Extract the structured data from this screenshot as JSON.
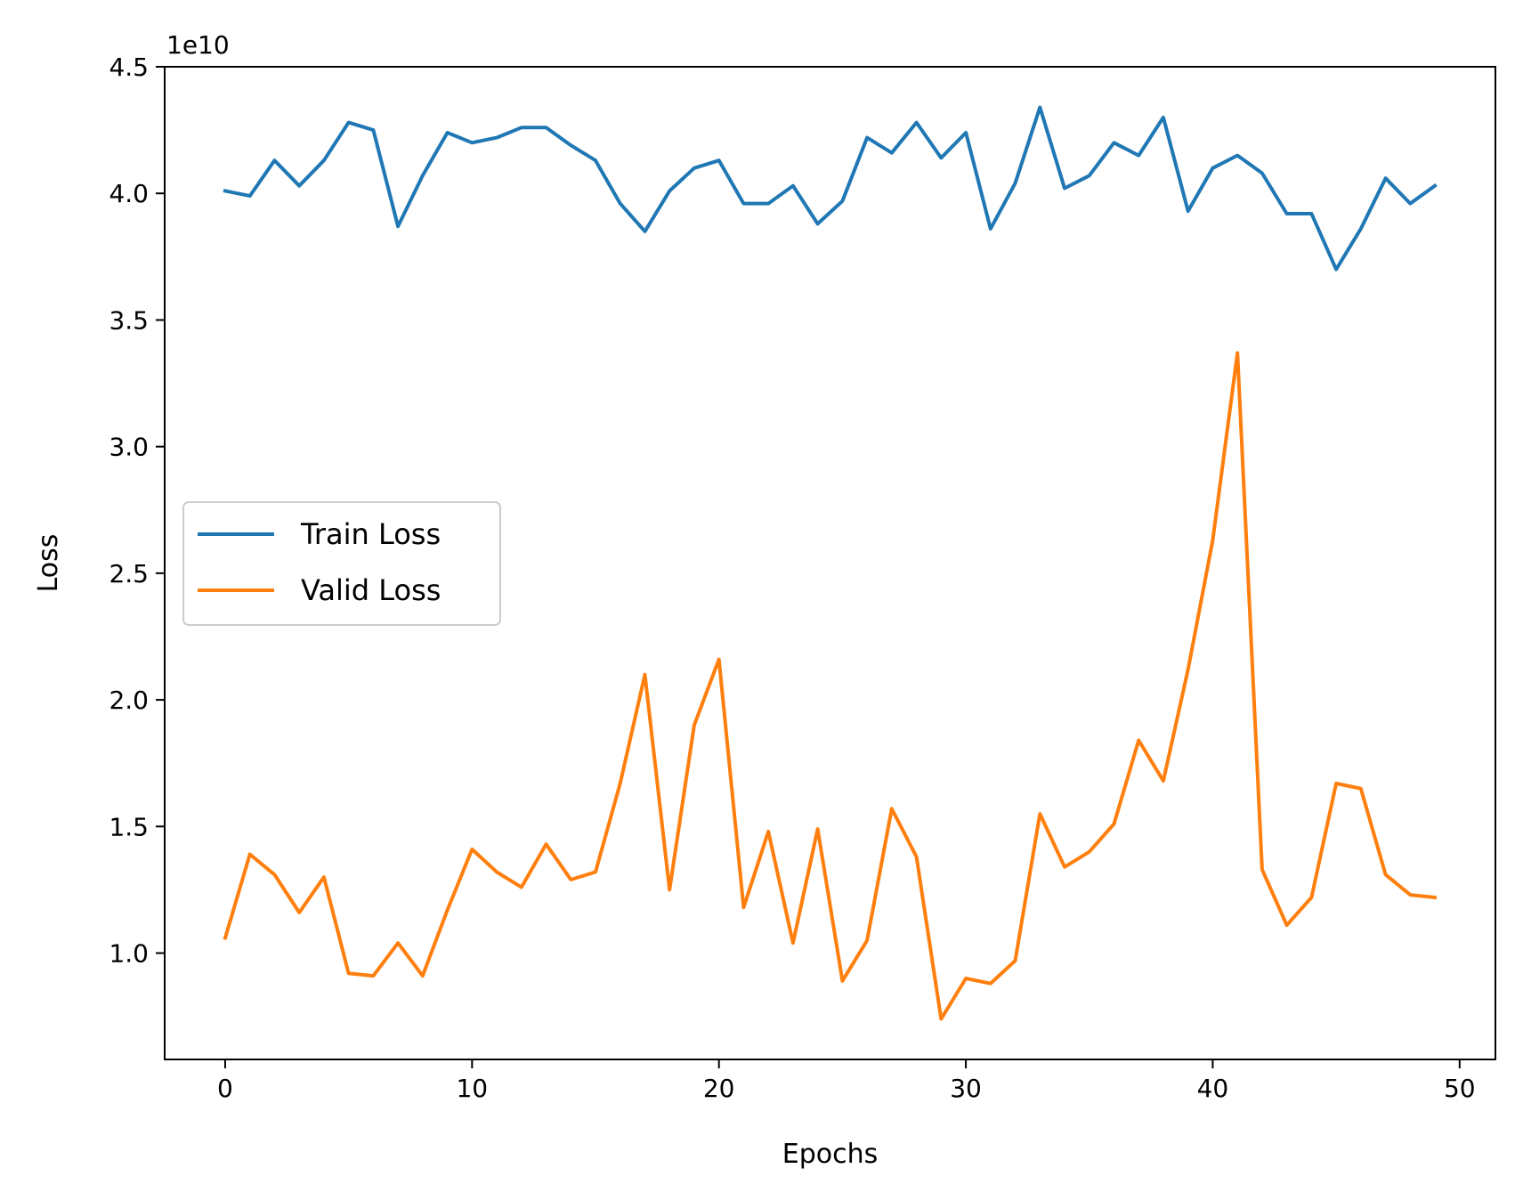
{
  "chart_data": {
    "type": "line",
    "xlabel": "Epochs",
    "ylabel": "Loss",
    "y_offset_label": "1e10",
    "xlim": [
      -2.45,
      51.45
    ],
    "ylim": [
      5.8,
      45.0
    ],
    "x_ticks": [
      0,
      10,
      20,
      30,
      40,
      50
    ],
    "x_tick_labels": [
      "0",
      "10",
      "20",
      "30",
      "40",
      "50"
    ],
    "y_ticks": [
      10,
      15,
      20,
      25,
      30,
      35,
      40,
      45
    ],
    "y_tick_labels": [
      "1.0",
      "1.5",
      "2.0",
      "2.5",
      "3.0",
      "3.5",
      "4.0",
      "4.5"
    ],
    "y_unit_note": "values in units of 1e9 (axis label 1e10 multiplies tick labels)",
    "legend_position": "center-left",
    "grid": false,
    "x": [
      0,
      1,
      2,
      3,
      4,
      5,
      6,
      7,
      8,
      9,
      10,
      11,
      12,
      13,
      14,
      15,
      16,
      17,
      18,
      19,
      20,
      21,
      22,
      23,
      24,
      25,
      26,
      27,
      28,
      29,
      30,
      31,
      32,
      33,
      34,
      35,
      36,
      37,
      38,
      39,
      40,
      41,
      42,
      43,
      44,
      45,
      46,
      47,
      48,
      49
    ],
    "series": [
      {
        "name": "Train Loss",
        "color": "#1f77b4",
        "values": [
          40.1,
          39.9,
          41.3,
          40.3,
          41.3,
          42.8,
          42.5,
          38.7,
          40.7,
          42.4,
          42.0,
          42.2,
          42.6,
          42.6,
          41.9,
          41.3,
          39.6,
          38.5,
          40.1,
          41.0,
          41.3,
          39.6,
          39.6,
          40.3,
          38.8,
          39.7,
          42.2,
          41.6,
          42.8,
          41.4,
          42.4,
          38.6,
          40.4,
          43.4,
          40.2,
          40.7,
          42.0,
          41.5,
          43.0,
          39.3,
          41.0,
          41.5,
          40.8,
          39.2,
          39.2,
          37.0,
          38.6,
          40.6,
          39.6,
          40.3
        ]
      },
      {
        "name": "Valid Loss",
        "color": "#ff7f0e",
        "values": [
          10.6,
          13.9,
          13.1,
          11.6,
          13.0,
          9.2,
          9.1,
          10.4,
          9.1,
          11.7,
          14.1,
          13.2,
          12.6,
          14.3,
          12.9,
          13.2,
          16.7,
          21.0,
          12.5,
          19.0,
          21.6,
          11.8,
          14.8,
          10.4,
          14.9,
          8.9,
          10.5,
          15.7,
          13.8,
          7.4,
          9.0,
          8.8,
          9.7,
          15.5,
          13.4,
          14.0,
          15.1,
          18.4,
          16.8,
          21.2,
          26.3,
          33.7,
          13.3,
          11.1,
          12.2,
          16.7,
          16.5,
          13.1,
          12.3,
          12.2
        ]
      }
    ]
  }
}
